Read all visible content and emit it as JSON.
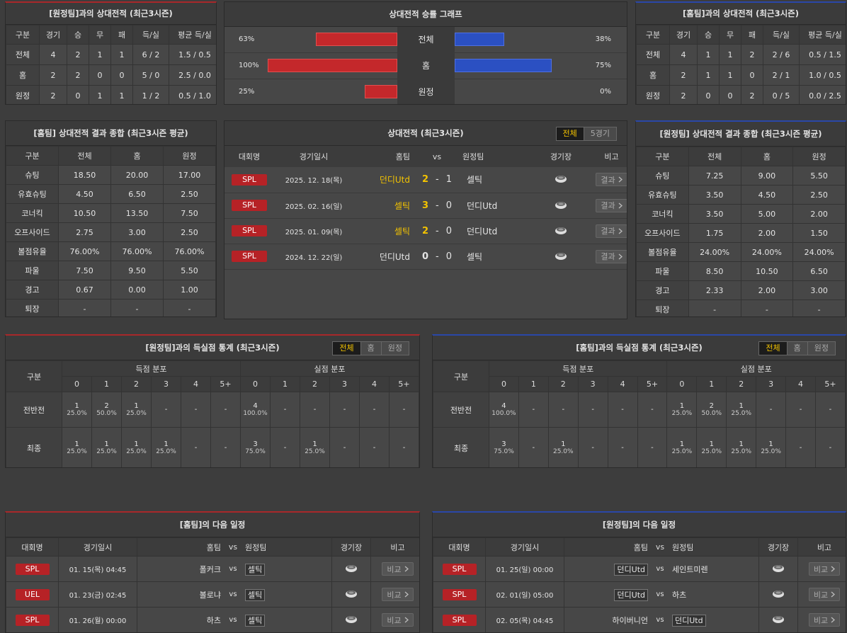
{
  "away_h2h": {
    "title": "[원정팀]과의 상대전적 (최근3시즌)",
    "columns": [
      "구분",
      "경기",
      "승",
      "무",
      "패",
      "득/실",
      "평균 득/실"
    ],
    "rows": [
      [
        "전체",
        "4",
        "2",
        "1",
        "1",
        "6 / 2",
        "1.5 / 0.5"
      ],
      [
        "홈",
        "2",
        "2",
        "0",
        "0",
        "5 / 0",
        "2.5 / 0.0"
      ],
      [
        "원정",
        "2",
        "0",
        "1",
        "1",
        "1 / 2",
        "0.5 / 1.0"
      ]
    ]
  },
  "win_graph": {
    "title": "상대전적 승률 그래프",
    "categories": [
      "전체",
      "홈",
      "원정"
    ],
    "xlim": [
      0,
      100
    ],
    "left_values": [
      63,
      100,
      25
    ],
    "left_labels": [
      "63%",
      "100%",
      "25%"
    ],
    "left_color": "#c4282b",
    "right_values": [
      38,
      75,
      0
    ],
    "right_labels": [
      "38%",
      "75%",
      "0%"
    ],
    "right_color": "#2b50c2"
  },
  "home_h2h": {
    "title": "[홈팀]과의 상대전적 (최근3시즌)",
    "columns": [
      "구분",
      "경기",
      "승",
      "무",
      "패",
      "득/실",
      "평균 득/실"
    ],
    "rows": [
      [
        "전체",
        "4",
        "1",
        "1",
        "2",
        "2 / 6",
        "0.5 / 1.5"
      ],
      [
        "홈",
        "2",
        "1",
        "1",
        "0",
        "2 / 1",
        "1.0 / 0.5"
      ],
      [
        "원정",
        "2",
        "0",
        "0",
        "2",
        "0 / 5",
        "0.0 / 2.5"
      ]
    ]
  },
  "home_summary": {
    "title": "[홈팀] 상대전적 결과 종합 (최근3시즌 평균)",
    "columns": [
      "구분",
      "전체",
      "홈",
      "원정"
    ],
    "rows": [
      [
        "슈팅",
        "18.50",
        "20.00",
        "17.00"
      ],
      [
        "유효슈팅",
        "4.50",
        "6.50",
        "2.50"
      ],
      [
        "코너킥",
        "10.50",
        "13.50",
        "7.50"
      ],
      [
        "오프사이드",
        "2.75",
        "3.00",
        "2.50"
      ],
      [
        "볼점유율",
        "76.00%",
        "76.00%",
        "76.00%"
      ],
      [
        "파울",
        "7.50",
        "9.50",
        "5.50"
      ],
      [
        "경고",
        "0.67",
        "0.00",
        "1.00"
      ],
      [
        "퇴장",
        "-",
        "-",
        "-"
      ]
    ]
  },
  "h2h_matches": {
    "title": "상대전적 (최근3시즌)",
    "tabs": [
      "전체",
      "5경기"
    ],
    "columns": [
      "대회명",
      "경기일시",
      "홈팀",
      "vs",
      "원정팀",
      "경기장",
      "비고"
    ],
    "rows": [
      [
        "SPL",
        "2025. 12. 18(목)",
        "던디Utd",
        2,
        "-",
        1,
        "셀틱",
        "결과"
      ],
      [
        "SPL",
        "2025. 02. 16(일)",
        "셀틱",
        3,
        "-",
        0,
        "던디Utd",
        "결과"
      ],
      [
        "SPL",
        "2025. 01. 09(목)",
        "셀틱",
        2,
        "-",
        0,
        "던디Utd",
        "결과"
      ],
      [
        "SPL",
        "2024. 12. 22(일)",
        "던디Utd",
        0,
        "-",
        0,
        "셀틱",
        "결과"
      ]
    ]
  },
  "away_summary": {
    "title": "[원정팀] 상대전적 결과 종합 (최근3시즌 평균)",
    "columns": [
      "구분",
      "전체",
      "홈",
      "원정"
    ],
    "rows": [
      [
        "슈팅",
        "7.25",
        "9.00",
        "5.50"
      ],
      [
        "유효슈팅",
        "3.50",
        "4.50",
        "2.50"
      ],
      [
        "코너킥",
        "3.50",
        "5.00",
        "2.00"
      ],
      [
        "오프사이드",
        "1.75",
        "2.00",
        "1.50"
      ],
      [
        "볼점유율",
        "24.00%",
        "24.00%",
        "24.00%"
      ],
      [
        "파울",
        "8.50",
        "10.50",
        "6.50"
      ],
      [
        "경고",
        "2.33",
        "2.00",
        "3.00"
      ],
      [
        "퇴장",
        "-",
        "-",
        "-"
      ]
    ]
  },
  "away_goals": {
    "title": "[원정팀]과의 득실점 통계 (최근3시즌)",
    "tabs": [
      "전체",
      "홈",
      "원정"
    ],
    "label_header": "구분",
    "groups": [
      "득점 분포",
      "실점 분포"
    ],
    "buckets": [
      "0",
      "1",
      "2",
      "3",
      "4",
      "5+"
    ],
    "rows": [
      {
        "label": "전반전",
        "cells": [
          [
            "1",
            "25.0%"
          ],
          [
            "2",
            "50.0%"
          ],
          [
            "1",
            "25.0%"
          ],
          [
            "-"
          ],
          [
            "-"
          ],
          [
            "-"
          ],
          [
            "4",
            "100.0%"
          ],
          [
            "-"
          ],
          [
            "-"
          ],
          [
            "-"
          ],
          [
            "-"
          ],
          [
            "-"
          ]
        ]
      },
      {
        "label": "최종",
        "cells": [
          [
            "1",
            "25.0%"
          ],
          [
            "1",
            "25.0%"
          ],
          [
            "1",
            "25.0%"
          ],
          [
            "1",
            "25.0%"
          ],
          [
            "-"
          ],
          [
            "-"
          ],
          [
            "3",
            "75.0%"
          ],
          [
            "-"
          ],
          [
            "1",
            "25.0%"
          ],
          [
            "-"
          ],
          [
            "-"
          ],
          [
            "-"
          ]
        ]
      }
    ]
  },
  "home_goals": {
    "title": "[홈팀]과의 득실점 통계 (최근3시즌)",
    "tabs": [
      "전체",
      "홈",
      "원정"
    ],
    "label_header": "구분",
    "groups": [
      "득점 분포",
      "실점 분포"
    ],
    "buckets": [
      "0",
      "1",
      "2",
      "3",
      "4",
      "5+"
    ],
    "rows": [
      {
        "label": "전반전",
        "cells": [
          [
            "4",
            "100.0%"
          ],
          [
            "-"
          ],
          [
            "-"
          ],
          [
            "-"
          ],
          [
            "-"
          ],
          [
            "-"
          ],
          [
            "1",
            "25.0%"
          ],
          [
            "2",
            "50.0%"
          ],
          [
            "1",
            "25.0%"
          ],
          [
            "-"
          ],
          [
            "-"
          ],
          [
            "-"
          ]
        ]
      },
      {
        "label": "최종",
        "cells": [
          [
            "3",
            "75.0%"
          ],
          [
            "-"
          ],
          [
            "1",
            "25.0%"
          ],
          [
            "-"
          ],
          [
            "-"
          ],
          [
            "-"
          ],
          [
            "1",
            "25.0%"
          ],
          [
            "1",
            "25.0%"
          ],
          [
            "1",
            "25.0%"
          ],
          [
            "1",
            "25.0%"
          ],
          [
            "-"
          ],
          [
            "-"
          ]
        ]
      }
    ]
  },
  "home_next": {
    "title": "[홈팀]의 다음 일정",
    "columns": [
      "대회명",
      "경기일시",
      "홈팀",
      "vs",
      "원정팀",
      "경기장",
      "비고"
    ],
    "rows": [
      [
        "SPL",
        "01. 15(목) 04:45",
        "폴커크",
        "vs",
        "셀틱",
        "비교"
      ],
      [
        "UEL",
        "01. 23(금) 02:45",
        "볼로냐",
        "vs",
        "셀틱",
        "비교"
      ],
      [
        "SPL",
        "01. 26(월) 00:00",
        "하츠",
        "vs",
        "셀틱",
        "비교"
      ]
    ]
  },
  "away_next": {
    "title": "[원정팀]의 다음 일정",
    "columns": [
      "대회명",
      "경기일시",
      "홈팀",
      "vs",
      "원정팀",
      "경기장",
      "비고"
    ],
    "rows": [
      [
        "SPL",
        "01. 25(일) 00:00",
        "던디Utd",
        "vs",
        "세인트미렌",
        "비교"
      ],
      [
        "SPL",
        "02. 01(일) 05:00",
        "던디Utd",
        "vs",
        "하츠",
        "비교"
      ],
      [
        "SPL",
        "02. 05(목) 04:45",
        "하이버니언",
        "vs",
        "던디Utd",
        "비교"
      ]
    ]
  }
}
